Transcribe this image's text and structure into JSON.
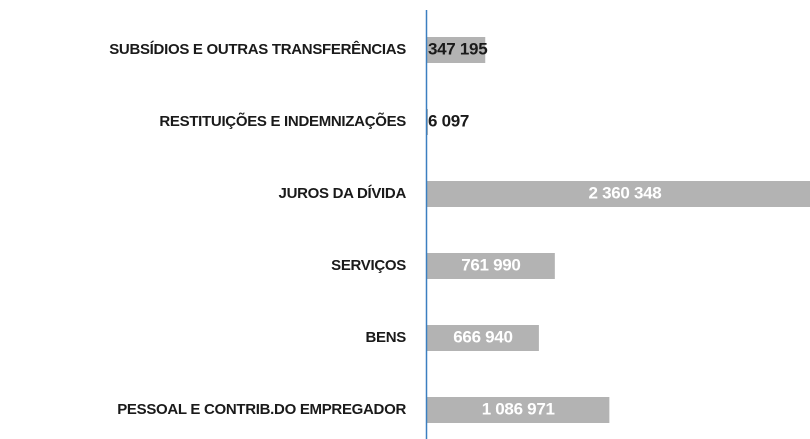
{
  "chart_data": {
    "type": "bar",
    "orientation": "horizontal",
    "categories": [
      "SUBSÍDIOS E OUTRAS TRANSFERÊNCIAS",
      "RESTITUIÇÕES E INDEMNIZAÇÕES",
      "JUROS DA DÍVIDA",
      "SERVIÇOS",
      "BENS",
      "PESSOAL E CONTRIB.DO EMPREGADOR"
    ],
    "values": [
      347195,
      6097,
      2360348,
      761990,
      666940,
      1086971
    ],
    "value_labels": [
      "347 195",
      "6 097",
      "2 360 348",
      "761 990",
      "666 940",
      "1 086 971"
    ],
    "color": "#b3b3b3"
  }
}
